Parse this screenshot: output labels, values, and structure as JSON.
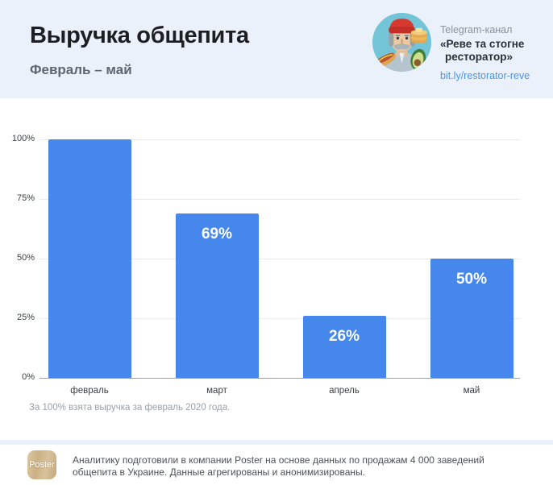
{
  "header": {
    "title": "Выручка общепита",
    "subtitle": "Февраль – май",
    "channel": {
      "type_label": "Telegram-канал",
      "name_line1": "«Реве та стогне",
      "name_line2": "ресторатор»",
      "link": "bit.ly/restorator-reve"
    }
  },
  "chart_data": {
    "type": "bar",
    "title": "Выручка общепита",
    "subtitle": "Февраль – май",
    "categories": [
      "февраль",
      "март",
      "апрель",
      "май"
    ],
    "values": [
      100,
      69,
      26,
      50
    ],
    "bar_labels": [
      "",
      "69%",
      "26%",
      "50%"
    ],
    "yticks": [
      {
        "value": 100,
        "label": "100%"
      },
      {
        "value": 75,
        "label": "75%"
      },
      {
        "value": 50,
        "label": "50%"
      },
      {
        "value": 25,
        "label": "25%"
      },
      {
        "value": 0,
        "label": "0%"
      }
    ],
    "ylim": [
      0,
      100
    ],
    "grid": true,
    "legend": "none",
    "bar_color": "#4687ec",
    "footnote": "За 100% взята выручка за февраль 2020 года."
  },
  "footer": {
    "logo_label": "Poster",
    "line1": "Аналитику подготовили в компании Poster на основе данных по продажам 4 000 заведений",
    "line2": "общепита в Украине. Данные агрегированы и анонимизированы."
  },
  "colors": {
    "background": "#ebf1fa",
    "bar": "#4687ec",
    "link": "#4a94f0",
    "avatar_bg": "#74c4d8",
    "grid": "#e8eaed",
    "zero_axis": "#9aa0a6"
  }
}
